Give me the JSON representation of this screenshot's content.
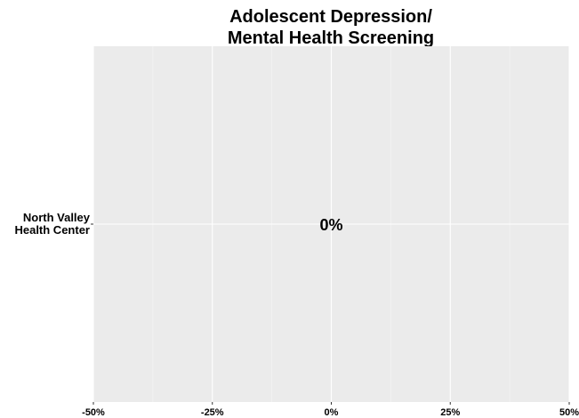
{
  "chart_data": {
    "type": "bar",
    "orientation": "horizontal",
    "title": [
      "Adolescent Depression/",
      "Mental Health Screening"
    ],
    "categories": [
      [
        "North Valley",
        "Health Center"
      ]
    ],
    "values": [
      0
    ],
    "data_labels": [
      "0%"
    ],
    "xlim": [
      -50,
      50
    ],
    "x_ticks": [
      -50,
      -25,
      0,
      25,
      50
    ],
    "x_tick_labels": [
      "-50%",
      "-25%",
      "0%",
      "25%",
      "50%"
    ],
    "grid": true,
    "legend": "none",
    "colors": {
      "panel_background": "#ebebeb",
      "grid_major": "#ffffff",
      "grid_minor": "#f5f5f5",
      "text": "#000000"
    }
  }
}
